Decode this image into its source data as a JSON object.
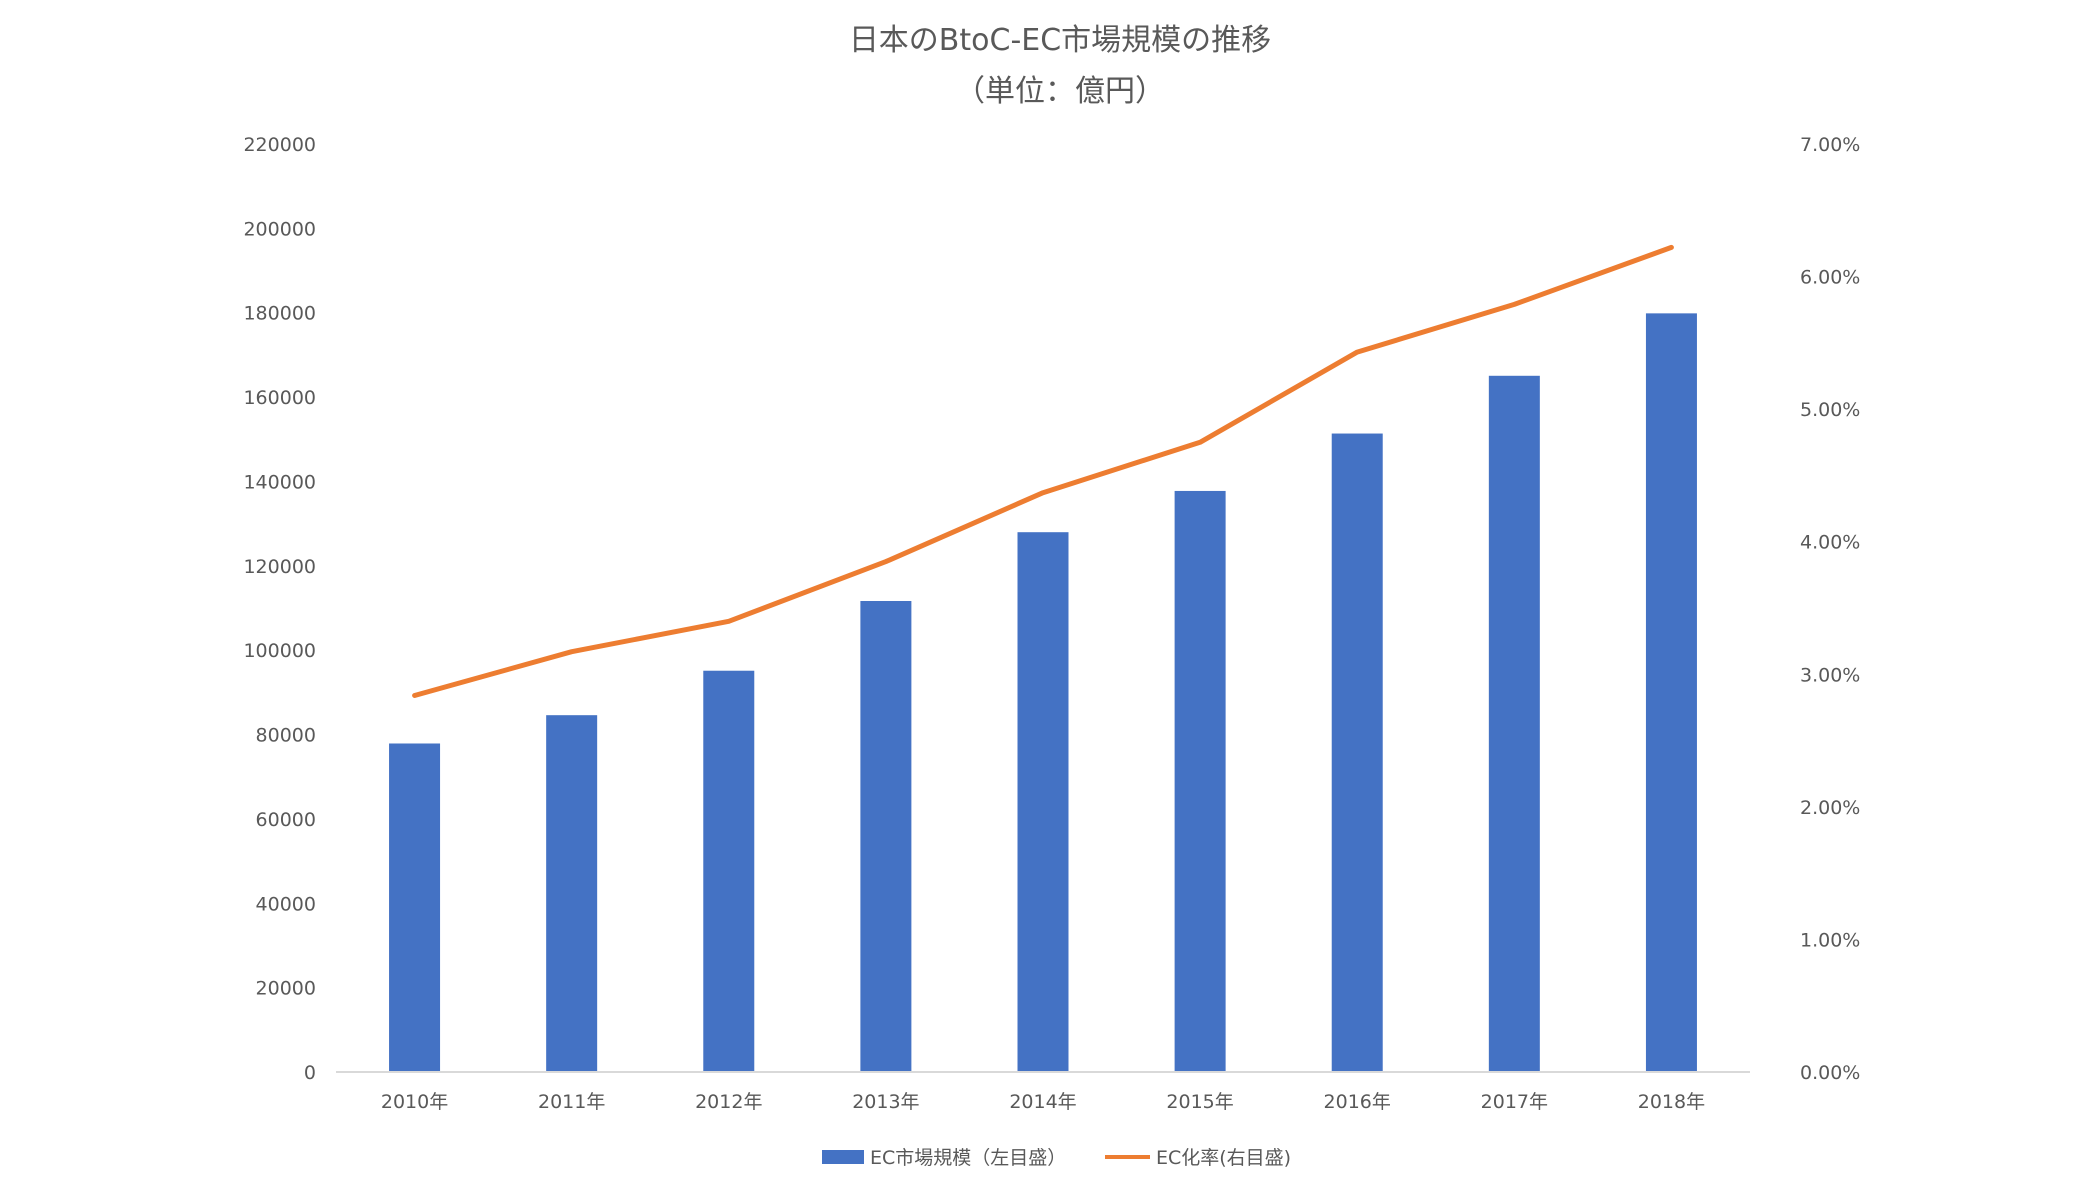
{
  "chart_data": {
    "type": "bar",
    "title": "日本のBtoC-EC市場規模の推移",
    "subtitle": "（単位：億円）",
    "categories": [
      "2010年",
      "2011年",
      "2012年",
      "2013年",
      "2014年",
      "2015年",
      "2016年",
      "2017年",
      "2018年"
    ],
    "series": [
      {
        "name": "EC市場規模（左目盛）",
        "type": "bar",
        "axis": "left",
        "color": "#4472C4",
        "values": [
          77880,
          84590,
          95130,
          111660,
          127970,
          137750,
          151360,
          165050,
          179850
        ]
      },
      {
        "name": "EC化率(右目盛)",
        "type": "line",
        "axis": "right",
        "color": "#ED7D31",
        "values": [
          2.84,
          3.17,
          3.4,
          3.85,
          4.37,
          4.75,
          5.43,
          5.79,
          6.22
        ]
      }
    ],
    "left_axis": {
      "min": 0,
      "max": 220000,
      "ticks": [
        "0",
        "20000",
        "40000",
        "60000",
        "80000",
        "100000",
        "120000",
        "140000",
        "160000",
        "180000",
        "200000",
        "220000"
      ]
    },
    "right_axis": {
      "min": 0,
      "max": 7,
      "ticks": [
        "0.00%",
        "1.00%",
        "2.00%",
        "3.00%",
        "4.00%",
        "5.00%",
        "6.00%",
        "7.00%"
      ]
    },
    "grid": false,
    "legend_position": "bottom"
  }
}
